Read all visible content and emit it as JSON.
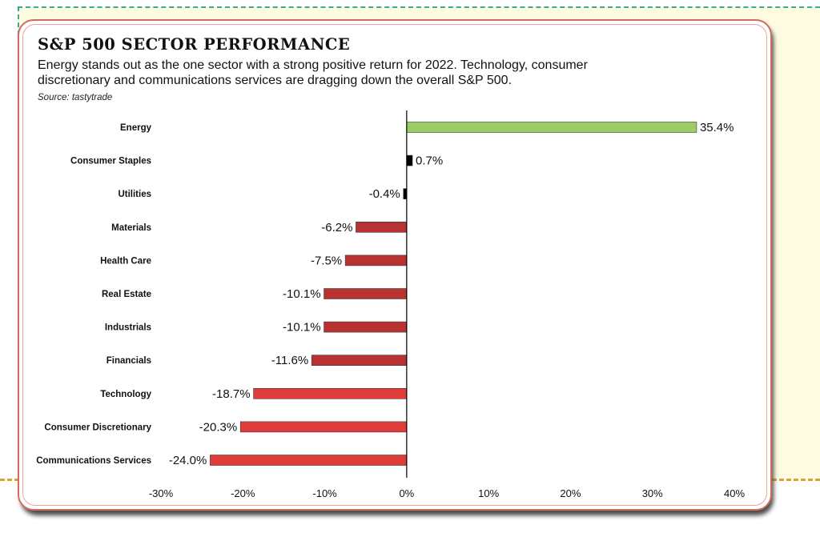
{
  "header": {
    "title": "S&P 500 SECTOR PERFORMANCE",
    "subtitle": "Energy stands out as the one sector with a strong positive return for 2022. Technology, consumer discretionary and communications services are dragging down the overall S&P 500.",
    "source": "Source: tastytrade"
  },
  "colors": {
    "positive_large": "#9ccc65",
    "small": "#000000",
    "moderate_negative": "#b83232",
    "large_negative": "#e03c3a"
  },
  "chart_data": {
    "type": "bar",
    "orientation": "horizontal",
    "categories": [
      "Energy",
      "Consumer Staples",
      "Utilities",
      "Materials",
      "Health Care",
      "Real Estate",
      "Industrials",
      "Financials",
      "Technology",
      "Consumer Discretionary",
      "Communications Services"
    ],
    "values": [
      35.4,
      0.7,
      -0.4,
      -6.2,
      -7.5,
      -10.1,
      -10.1,
      -11.6,
      -18.7,
      -20.3,
      -24.0
    ],
    "value_labels": [
      "35.4%",
      "0.7%",
      "-0.4%",
      "-6.2%",
      "-7.5%",
      "-10.1%",
      "-10.1%",
      "-11.6%",
      "-18.7%",
      "-20.3%",
      "-24.0%"
    ],
    "bar_colors": [
      "#9ccc65",
      "#000000",
      "#000000",
      "#b83232",
      "#b83232",
      "#b83232",
      "#b83232",
      "#b83232",
      "#e03c3a",
      "#e03c3a",
      "#e03c3a"
    ],
    "xlim": [
      -30,
      40
    ],
    "xticks": [
      -30,
      -20,
      -10,
      0,
      10,
      20,
      30,
      40
    ],
    "xtick_labels": [
      "-30%",
      "-20%",
      "-10%",
      "0%",
      "10%",
      "20%",
      "30%",
      "40%"
    ],
    "grid": false,
    "legend": "none"
  }
}
